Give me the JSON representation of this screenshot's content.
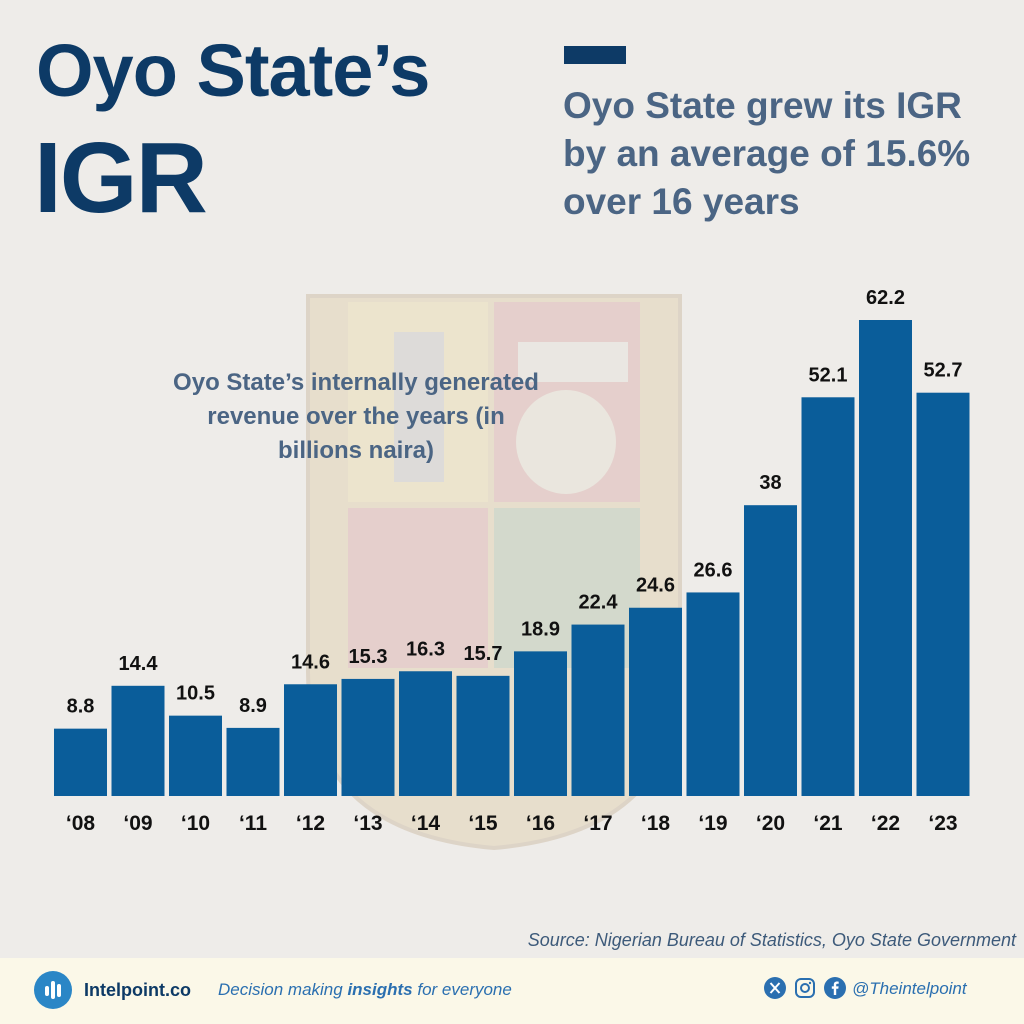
{
  "header": {
    "title_line1": "Oyo State’s",
    "title_line2": "IGR",
    "headline": "Oyo State grew its IGR by an average of 15.6% over 16 years"
  },
  "chart_caption": "Oyo State’s internally generated revenue over the years (in billions naira)",
  "source": "Source: Nigerian Bureau of Statistics, Oyo State Government",
  "footer": {
    "brand": "Intelpoint.co",
    "tagline_pre": "Decision making ",
    "tagline_bold": "insights",
    "tagline_post": " for everyone",
    "handle": "@Theintelpoint",
    "icons": [
      "x-icon",
      "instagram-icon",
      "facebook-icon"
    ]
  },
  "colors": {
    "bar": "#0a5d9a",
    "title": "#0d3a66",
    "subtitle": "#4b6584",
    "accent": "#2a86c6"
  },
  "chart_data": {
    "type": "bar",
    "title": "Oyo State’s internally generated revenue over the years (in billions naira)",
    "categories": [
      "‘08",
      "‘09",
      "‘10",
      "‘11",
      "‘12",
      "‘13",
      "‘14",
      "‘15",
      "‘16",
      "‘17",
      "‘18",
      "‘19",
      "‘20",
      "‘21",
      "‘22",
      "‘23"
    ],
    "values": [
      8.8,
      14.4,
      10.5,
      8.9,
      14.6,
      15.3,
      16.3,
      15.7,
      18.9,
      22.4,
      24.6,
      26.6,
      38,
      52.1,
      62.2,
      52.7
    ],
    "labels": [
      "8.8",
      "14.4",
      "10.5",
      "8.9",
      "14.6",
      "15.3",
      "16.3",
      "15.7",
      "18.9",
      "22.4",
      "24.6",
      "26.6",
      "38",
      "52.1",
      "62.2",
      "52.7"
    ],
    "xlabel": "",
    "ylabel": "",
    "ylim": [
      0,
      62.2
    ],
    "grid": false,
    "legend": "none"
  }
}
